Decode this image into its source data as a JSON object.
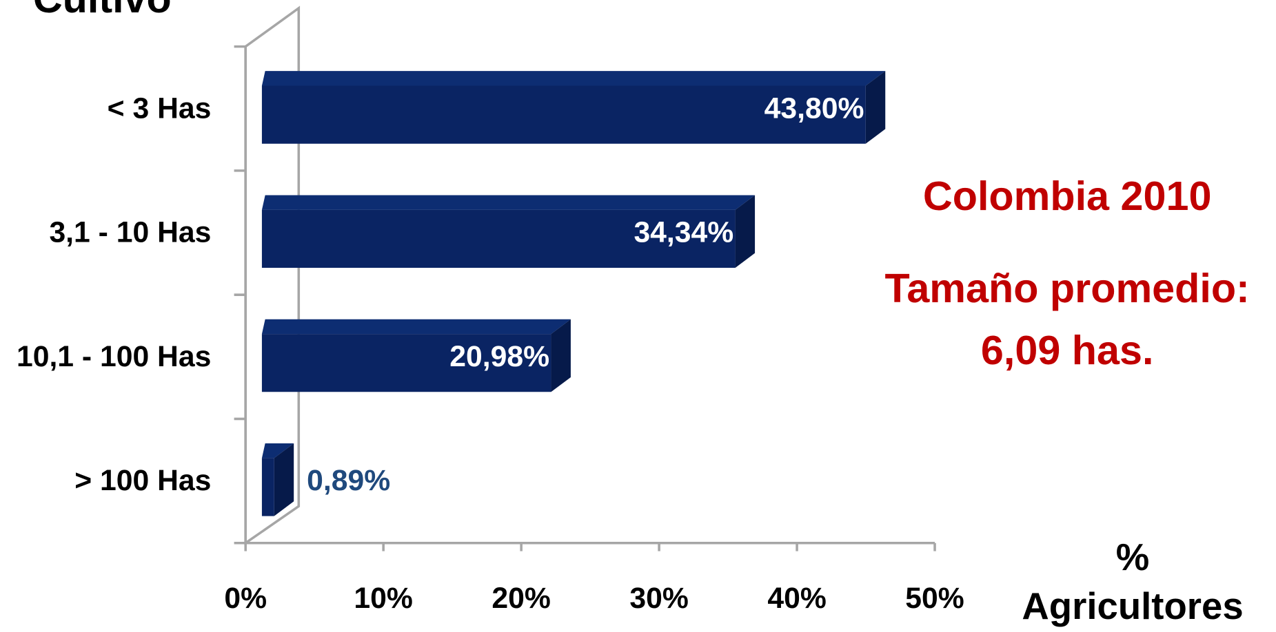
{
  "chart_data": {
    "type": "bar",
    "orientation": "horizontal",
    "ylabel": "Cultivo",
    "xlabel": [
      "%",
      "Agricultores"
    ],
    "categories": [
      "< 3 Has",
      "3,1 - 10 Has",
      "10,1 - 100 Has",
      "> 100 Has"
    ],
    "values": [
      43.8,
      34.34,
      20.98,
      0.89
    ],
    "value_labels": [
      "43,80%",
      "34,34%",
      "20,98%",
      "0,89%"
    ],
    "color": "#0a2463",
    "xlim": [
      0,
      50
    ],
    "xticks": [
      {
        "value": 0,
        "label": "0%"
      },
      {
        "value": 10,
        "label": "10%"
      },
      {
        "value": 20,
        "label": "20%"
      },
      {
        "value": 30,
        "label": "30%"
      },
      {
        "value": 40,
        "label": "40%"
      },
      {
        "value": 50,
        "label": "50%"
      }
    ],
    "annotations": [
      "Colombia 2010",
      "Tamaño promedio:",
      "6,09 has."
    ]
  }
}
